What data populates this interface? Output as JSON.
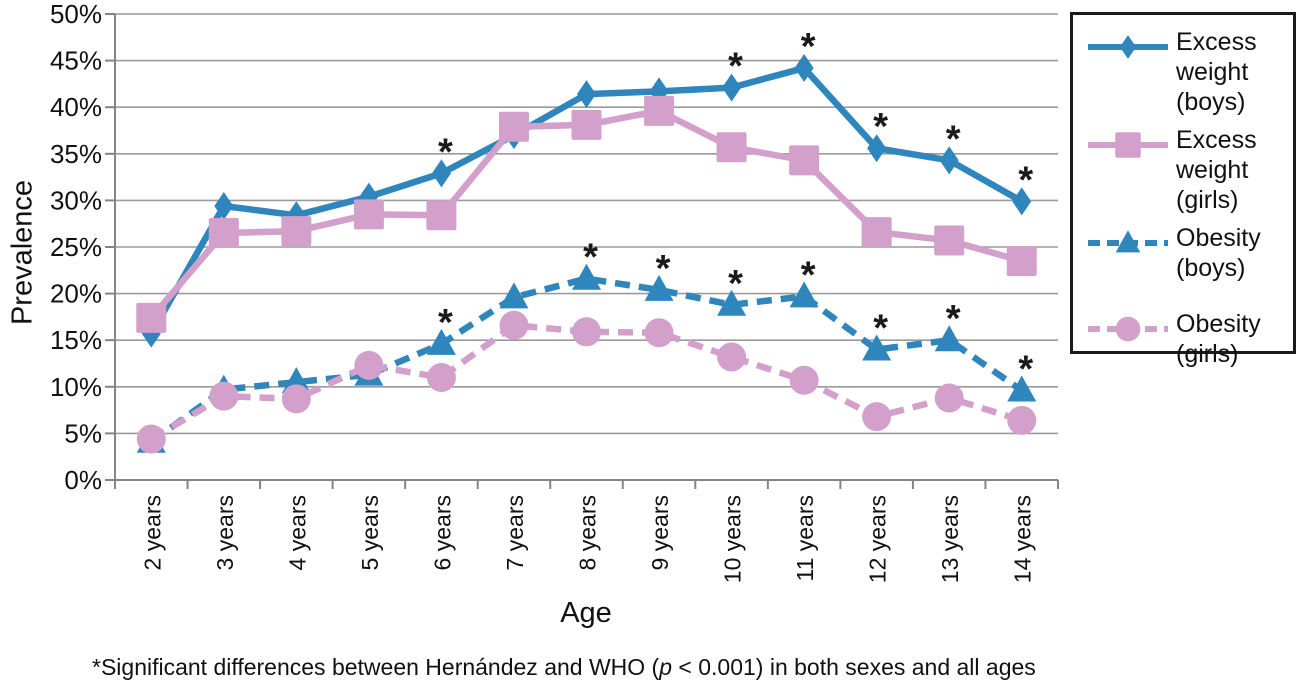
{
  "colors": {
    "boys_blue": "#2f86bd",
    "girls_pink": "#d2a0ca",
    "gridline": "#9a9a9a",
    "axis": "#848484",
    "text": "#111111",
    "asterisk": "#1a1a1a",
    "legend_border": "#1a1a1a",
    "background": "#ffffff"
  },
  "chart_data": {
    "type": "line",
    "title": "",
    "xlabel": "Age",
    "ylabel": "Prevalence",
    "ylim": [
      0,
      50
    ],
    "ytick_step": 5,
    "ytick_labels": [
      "0%",
      "5%",
      "10%",
      "15%",
      "20%",
      "25%",
      "30%",
      "35%",
      "40%",
      "45%",
      "50%"
    ],
    "grid": true,
    "legend_position": "right",
    "asterisk_symbol": "*",
    "categories": [
      "2 years",
      "3 years",
      "4 years",
      "5 years",
      "6 years",
      "7 years",
      "8 years",
      "9 years",
      "10 years",
      "11 years",
      "12 years",
      "13 years",
      "14 years"
    ],
    "series": [
      {
        "name": "excess-weight-boys",
        "label": "Excess weight (boys)",
        "color": "#2f86bd",
        "line_style": "solid",
        "marker": "diamond",
        "values": [
          15.7,
          29.4,
          28.4,
          30.4,
          32.9,
          37.0,
          41.4,
          41.7,
          42.1,
          44.2,
          35.6,
          34.3,
          29.9
        ],
        "asterisk_ages": [
          "6 years",
          "10 years",
          "11 years",
          "12 years",
          "13 years",
          "14 years"
        ]
      },
      {
        "name": "excess-weight-girls",
        "label": "Excess weight (girls)",
        "color": "#d2a0ca",
        "line_style": "solid",
        "marker": "square",
        "values": [
          17.4,
          26.5,
          26.7,
          28.5,
          28.4,
          37.9,
          38.1,
          39.6,
          35.7,
          34.3,
          26.6,
          25.7,
          23.5
        ],
        "asterisk_ages": []
      },
      {
        "name": "obesity-boys",
        "label": "Obesity (boys)",
        "color": "#2f86bd",
        "line_style": "dashed",
        "marker": "triangle",
        "values": [
          4.1,
          9.7,
          10.5,
          11.3,
          14.6,
          19.6,
          21.6,
          20.4,
          18.8,
          19.7,
          14.0,
          15.0,
          9.6
        ],
        "asterisk_ages": [
          "6 years",
          "8 years",
          "9 years",
          "10 years",
          "11 years",
          "12 years",
          "13 years",
          "14 years"
        ]
      },
      {
        "name": "obesity-girls",
        "label": "Obesity (girls)",
        "color": "#d2a0ca",
        "line_style": "dashed",
        "marker": "circle",
        "values": [
          4.4,
          9.0,
          8.7,
          12.3,
          11.0,
          16.6,
          15.9,
          15.8,
          13.2,
          10.7,
          6.8,
          8.8,
          6.4
        ],
        "asterisk_ages": []
      }
    ],
    "footnote": {
      "before_p": "*Significant differences between Hernández and WHO (",
      "p": "p",
      "after_p": " < 0.001) in both sexes and all ages"
    }
  }
}
